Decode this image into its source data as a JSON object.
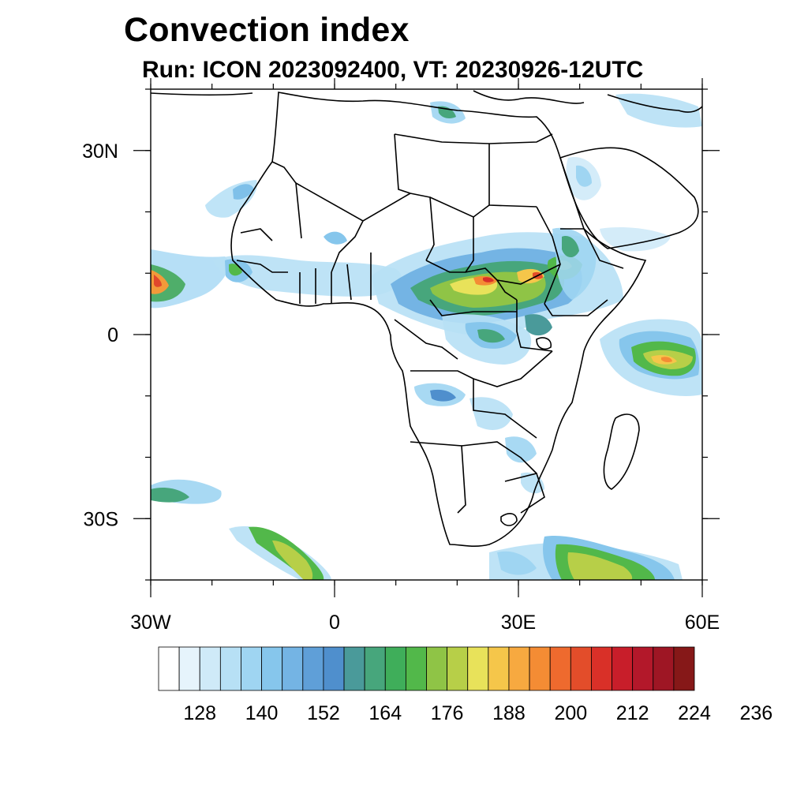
{
  "title": "Convection index",
  "subtitle": "Run: ICON 2023092400,  VT: 20230926-12UTC",
  "map": {
    "lon_range": [
      -30,
      60
    ],
    "lat_range": [
      -40,
      40
    ],
    "x_ticks": [
      {
        "lon": -30,
        "label": "30W"
      },
      {
        "lon": 0,
        "label": "0"
      },
      {
        "lon": 30,
        "label": "30E"
      },
      {
        "lon": 60,
        "label": "60E"
      }
    ],
    "y_ticks": [
      {
        "lat": 30,
        "label": "30N"
      },
      {
        "lat": 0,
        "label": "0"
      },
      {
        "lat": -30,
        "label": "30S"
      }
    ],
    "minor_lon_step": 10,
    "minor_lat_step": 10
  },
  "colorbar": {
    "colors": [
      "#ffffff",
      "#e6f4fc",
      "#cfeaf8",
      "#b7e0f5",
      "#9fd5f2",
      "#86c6ec",
      "#74b4e4",
      "#5f9fd8",
      "#4f8fcd",
      "#4a9a9a",
      "#47a67c",
      "#3fae5a",
      "#52b84a",
      "#8fc446",
      "#b7cf48",
      "#e8e25a",
      "#f5c64a",
      "#f7a940",
      "#f48c34",
      "#ee6a2e",
      "#e34d2a",
      "#d93028",
      "#c81e2a",
      "#b3182a",
      "#9e1624",
      "#861818"
    ],
    "labels": [
      "128",
      "140",
      "152",
      "164",
      "176",
      "188",
      "200",
      "212",
      "224",
      "236"
    ],
    "label_every": 3,
    "first_labeled_index": 1
  }
}
